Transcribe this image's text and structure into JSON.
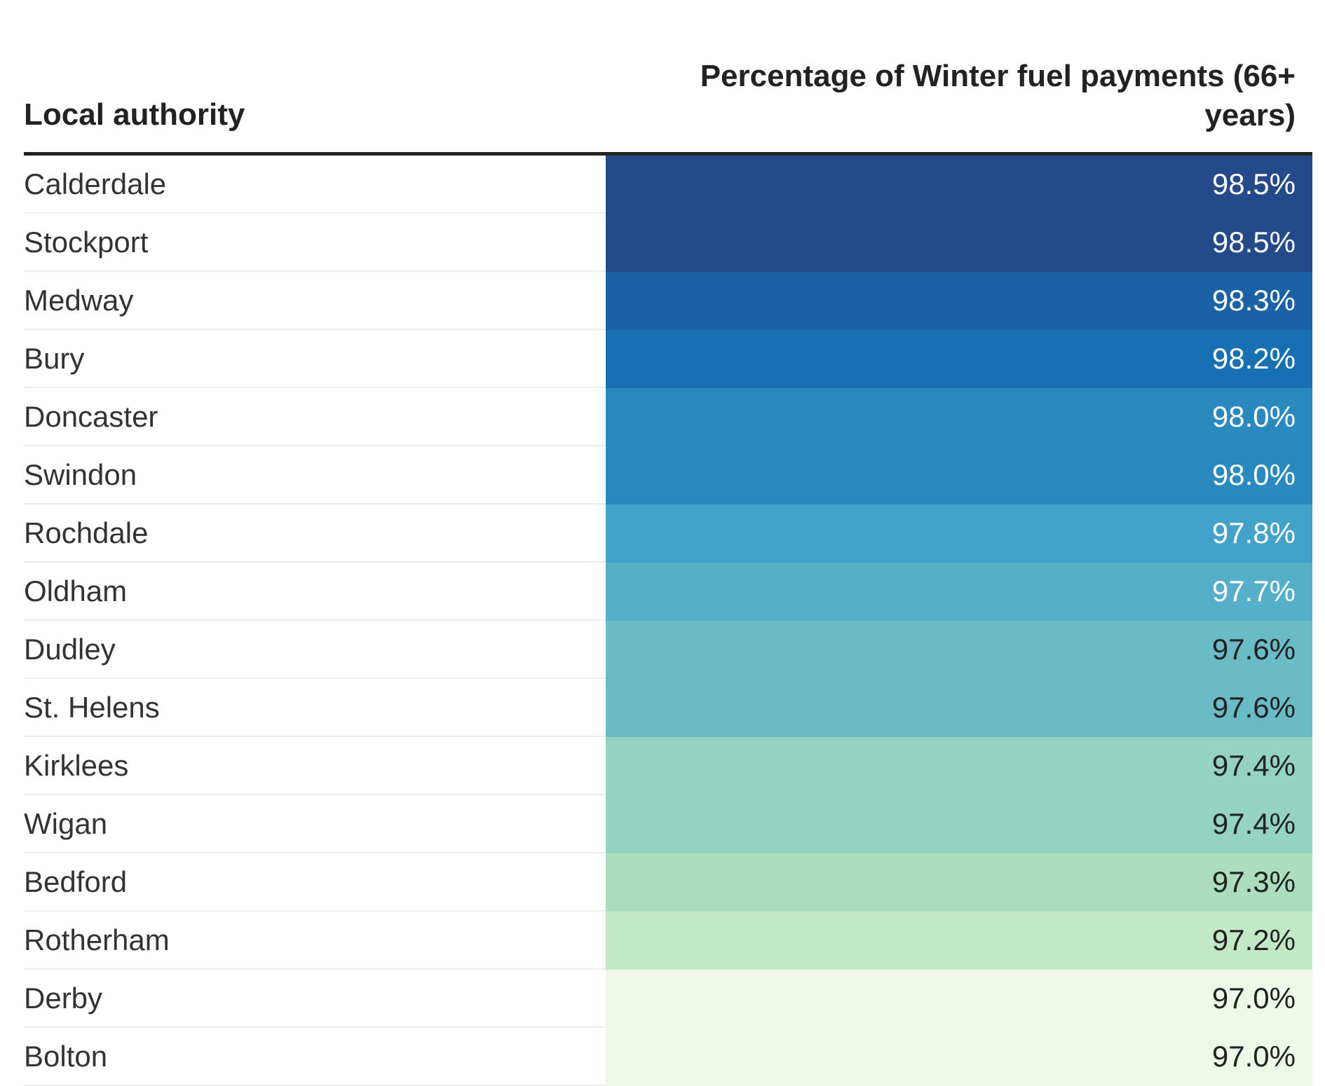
{
  "chart_data": {
    "type": "table",
    "columns": [
      "Local authority",
      "Percentage of Winter fuel payments (66+ years)"
    ],
    "rows": [
      {
        "label": "Calderdale",
        "value": 98.5,
        "display": "98.5%"
      },
      {
        "label": "Stockport",
        "value": 98.5,
        "display": "98.5%"
      },
      {
        "label": "Medway",
        "value": 98.3,
        "display": "98.3%"
      },
      {
        "label": "Bury",
        "value": 98.2,
        "display": "98.2%"
      },
      {
        "label": "Doncaster",
        "value": 98.0,
        "display": "98.0%"
      },
      {
        "label": "Swindon",
        "value": 98.0,
        "display": "98.0%"
      },
      {
        "label": "Rochdale",
        "value": 97.8,
        "display": "97.8%"
      },
      {
        "label": "Oldham",
        "value": 97.7,
        "display": "97.7%"
      },
      {
        "label": "Dudley",
        "value": 97.6,
        "display": "97.6%"
      },
      {
        "label": "St. Helens",
        "value": 97.6,
        "display": "97.6%"
      },
      {
        "label": "Kirklees",
        "value": 97.4,
        "display": "97.4%"
      },
      {
        "label": "Wigan",
        "value": 97.4,
        "display": "97.4%"
      },
      {
        "label": "Bedford",
        "value": 97.3,
        "display": "97.3%"
      },
      {
        "label": "Rotherham",
        "value": 97.2,
        "display": "97.2%"
      },
      {
        "label": "Derby",
        "value": 97.0,
        "display": "97.0%"
      },
      {
        "label": "Bolton",
        "value": 97.0,
        "display": "97.0%"
      }
    ],
    "color_scale": [
      {
        "value": 98.5,
        "color": "#254a8a",
        "text_color": "#ffffff"
      },
      {
        "value": 98.3,
        "color": "#1a62a6",
        "text_color": "#ffffff"
      },
      {
        "value": 98.2,
        "color": "#1670b2",
        "text_color": "#ffffff"
      },
      {
        "value": 98.0,
        "color": "#2a8ac0",
        "text_color": "#ffffff"
      },
      {
        "value": 97.8,
        "color": "#42a2c9",
        "text_color": "#ffffff"
      },
      {
        "value": 97.7,
        "color": "#55afc9",
        "text_color": "#ffffff"
      },
      {
        "value": 97.6,
        "color": "#69bbc6",
        "text_color": "#222222"
      },
      {
        "value": 97.4,
        "color": "#94d3c2",
        "text_color": "#222222"
      },
      {
        "value": 97.3,
        "color": "#abdebd",
        "text_color": "#222222"
      },
      {
        "value": 97.2,
        "color": "#c3e8c6",
        "text_color": "#222222"
      },
      {
        "value": 97.0,
        "color": "#eef8e8",
        "text_color": "#222222"
      }
    ]
  }
}
